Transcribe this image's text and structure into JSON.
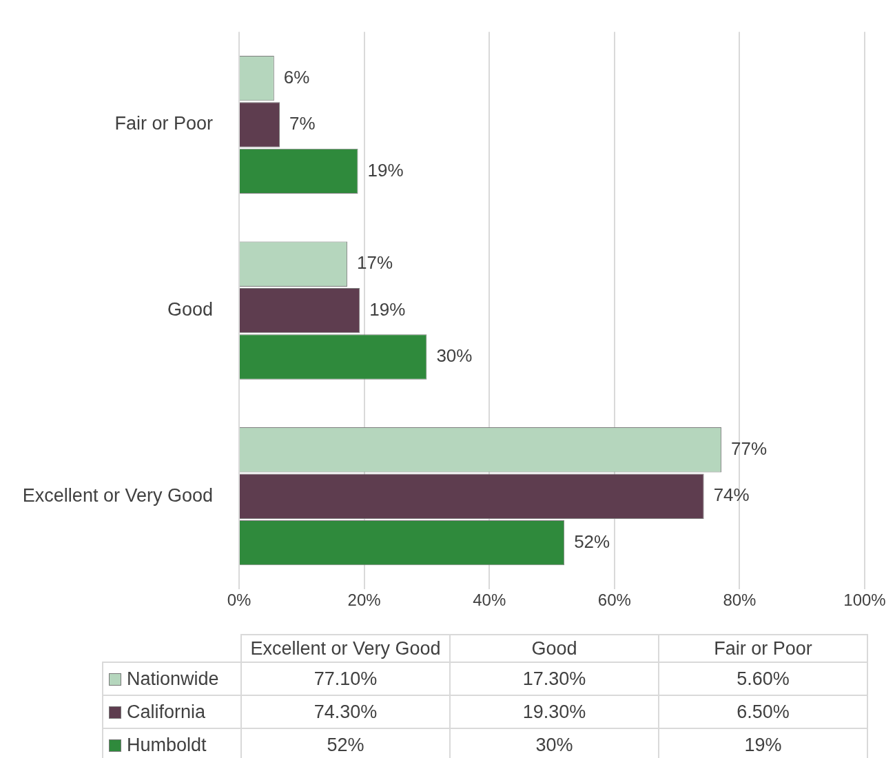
{
  "chart_data": {
    "type": "bar",
    "orientation": "horizontal",
    "categories": [
      "Fair or Poor",
      "Good",
      "Excellent or Very Good"
    ],
    "series": [
      {
        "name": "Nationwide",
        "color": "#b5d6bd",
        "values": [
          5.6,
          17.3,
          77.1
        ],
        "value_labels": [
          "6%",
          "17%",
          "77%"
        ]
      },
      {
        "name": "California",
        "color": "#5e3d4f",
        "values": [
          6.5,
          19.3,
          74.3
        ],
        "value_labels": [
          "7%",
          "19%",
          "74%"
        ]
      },
      {
        "name": "Humboldt",
        "color": "#2f8a3c",
        "values": [
          19,
          30,
          52
        ],
        "value_labels": [
          "19%",
          "30%",
          "52%"
        ]
      }
    ],
    "xlim": [
      0,
      100
    ],
    "xticks": [
      {
        "value": 0,
        "label": "0%"
      },
      {
        "value": 20,
        "label": "20%"
      },
      {
        "value": 40,
        "label": "40%"
      },
      {
        "value": 60,
        "label": "60%"
      },
      {
        "value": 80,
        "label": "80%"
      },
      {
        "value": 100,
        "label": "100%"
      }
    ],
    "grid": "x",
    "legend": "bottom",
    "annotations": [
      "77.10%",
      "17.30%",
      "5.60%",
      "74.30%",
      "19.30%",
      "6.50%",
      "52%",
      "30%",
      "19%"
    ]
  }
}
